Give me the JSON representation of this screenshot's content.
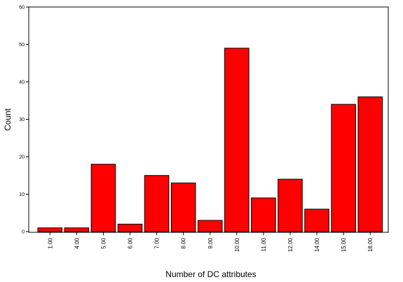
{
  "chart_data": {
    "type": "bar",
    "categories": [
      "1.00",
      "4.00",
      "5.00",
      "6.00",
      "7.00",
      "8.00",
      "9.00",
      "10.00",
      "11.00",
      "12.00",
      "14.00",
      "15.00",
      "18.00"
    ],
    "values": [
      1,
      1,
      18,
      2,
      15,
      13,
      3,
      49,
      9,
      14,
      6,
      34,
      36
    ],
    "xlabel": "Number of DC attributes",
    "ylabel": "Count",
    "ylim": [
      0,
      60
    ],
    "yticks": [
      0,
      10,
      20,
      30,
      40,
      50,
      60
    ],
    "grid": false,
    "bar_color": "#ff0000",
    "bar_edge_color": "#000000"
  }
}
